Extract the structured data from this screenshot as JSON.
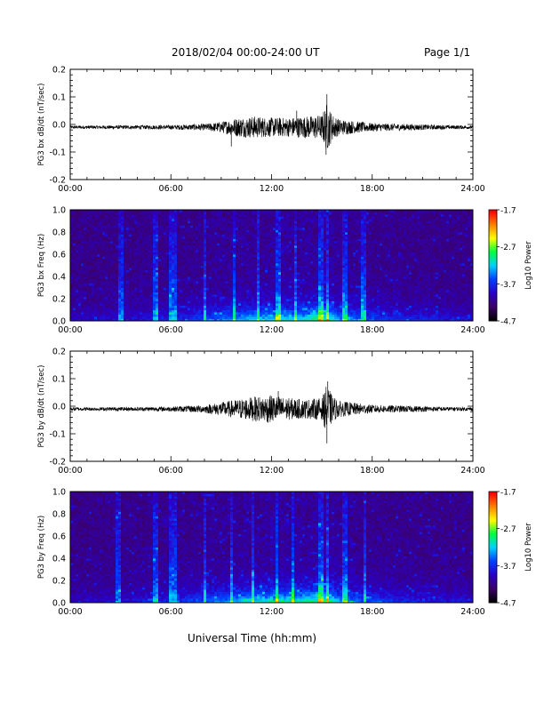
{
  "header": {
    "title": "2018/02/04  00:00-24:00 UT",
    "page": "Page 1/1"
  },
  "footer": {
    "xlabel": "Universal Time (hh:mm)"
  },
  "colormap": [
    "#000000",
    "#3b006b",
    "#2a00c8",
    "#0040ff",
    "#00d0ff",
    "#00ff40",
    "#ffff00",
    "#ff8000",
    "#ff0000"
  ],
  "chart_data": [
    {
      "type": "line",
      "ylabel": "PG3 bx dB/dt (nT/sec)",
      "xlim": [
        0,
        24
      ],
      "ylim": [
        -0.2,
        0.2
      ],
      "xticks": [
        "00:00",
        "06:00",
        "12:00",
        "18:00",
        "24:00"
      ],
      "yticks": [
        "-0.2",
        "-0.1",
        "0.0",
        "0.1",
        "0.2"
      ],
      "series": [
        {
          "baseline": -0.01,
          "envelope_x": [
            0,
            4,
            6,
            8,
            9,
            10,
            11,
            12,
            13,
            14,
            15,
            15.3,
            15.6,
            16,
            17,
            18,
            20,
            22,
            24
          ],
          "envelope_y": [
            0.006,
            0.007,
            0.008,
            0.012,
            0.02,
            0.035,
            0.04,
            0.035,
            0.035,
            0.04,
            0.045,
            0.09,
            0.05,
            0.03,
            0.022,
            0.015,
            0.012,
            0.008,
            0.006
          ],
          "spikes": [
            {
              "x": 15.3,
              "y": 0.11
            },
            {
              "x": 15.25,
              "y": -0.11
            },
            {
              "x": 9.6,
              "y": -0.08
            },
            {
              "x": 13.5,
              "y": 0.05
            }
          ]
        }
      ]
    },
    {
      "type": "heatmap",
      "ylabel": "PG3 bx Freq (Hz)",
      "xlim": [
        0,
        24
      ],
      "ylim": [
        0.0,
        1.0
      ],
      "xticks": [
        "00:00",
        "06:00",
        "12:00",
        "18:00",
        "24:00"
      ],
      "yticks": [
        "0.0",
        "0.2",
        "0.4",
        "0.6",
        "0.8",
        "1.0"
      ],
      "colorbar": {
        "label": "Log10 Power",
        "range": [
          -4.7,
          -1.7
        ],
        "ticks": [
          "-1.7",
          "-2.7",
          "-3.7",
          "-4.7"
        ]
      },
      "intensity": {
        "time_x": [
          0,
          3,
          6,
          8,
          10,
          12,
          14,
          15.3,
          16,
          18,
          20,
          24
        ],
        "time_level": [
          0.15,
          0.2,
          0.3,
          0.4,
          0.6,
          0.7,
          0.75,
          0.95,
          0.6,
          0.4,
          0.3,
          0.2
        ],
        "bright_columns": [
          3.0,
          5.1,
          6.0,
          6.3,
          8.0,
          9.8,
          11.2,
          12.4,
          13.4,
          14.9,
          15.3,
          16.4,
          17.5
        ]
      }
    },
    {
      "type": "line",
      "ylabel": "PG3 by dB/dt (nT/sec)",
      "xlim": [
        0,
        24
      ],
      "ylim": [
        -0.2,
        0.2
      ],
      "xticks": [
        "00:00",
        "06:00",
        "12:00",
        "18:00",
        "24:00"
      ],
      "yticks": [
        "-0.2",
        "-0.1",
        "0.0",
        "0.1",
        "0.2"
      ],
      "series": [
        {
          "baseline": -0.01,
          "envelope_x": [
            0,
            4,
            6,
            8,
            9,
            10,
            11,
            12,
            13,
            14,
            15,
            15.3,
            15.6,
            16,
            17,
            18,
            20,
            22,
            24
          ],
          "envelope_y": [
            0.006,
            0.007,
            0.009,
            0.014,
            0.025,
            0.035,
            0.045,
            0.05,
            0.04,
            0.035,
            0.04,
            0.09,
            0.05,
            0.03,
            0.022,
            0.015,
            0.012,
            0.008,
            0.006
          ],
          "spikes": [
            {
              "x": 15.35,
              "y": 0.09
            },
            {
              "x": 15.3,
              "y": -0.135
            },
            {
              "x": 12.4,
              "y": 0.055
            },
            {
              "x": 11.8,
              "y": -0.06
            }
          ]
        }
      ]
    },
    {
      "type": "heatmap",
      "ylabel": "PG3 by Freq (Hz)",
      "xlim": [
        0,
        24
      ],
      "ylim": [
        0.0,
        1.0
      ],
      "xticks": [
        "00:00",
        "06:00",
        "12:00",
        "18:00",
        "24:00"
      ],
      "yticks": [
        "0.0",
        "0.2",
        "0.4",
        "0.6",
        "0.8",
        "1.0"
      ],
      "colorbar": {
        "label": "Log10 Power",
        "range": [
          -4.7,
          -1.7
        ],
        "ticks": [
          "-1.7",
          "-2.7",
          "-3.7",
          "-4.7"
        ]
      },
      "intensity": {
        "time_x": [
          0,
          3,
          6,
          8,
          10,
          12,
          14,
          15.3,
          16,
          18,
          20,
          24
        ],
        "time_level": [
          0.15,
          0.2,
          0.3,
          0.45,
          0.6,
          0.75,
          0.75,
          0.95,
          0.6,
          0.4,
          0.3,
          0.2
        ],
        "bright_columns": [
          2.9,
          5.1,
          6.0,
          6.3,
          8.0,
          9.6,
          10.9,
          12.3,
          13.3,
          14.9,
          15.3,
          16.4,
          17.6
        ]
      }
    }
  ]
}
